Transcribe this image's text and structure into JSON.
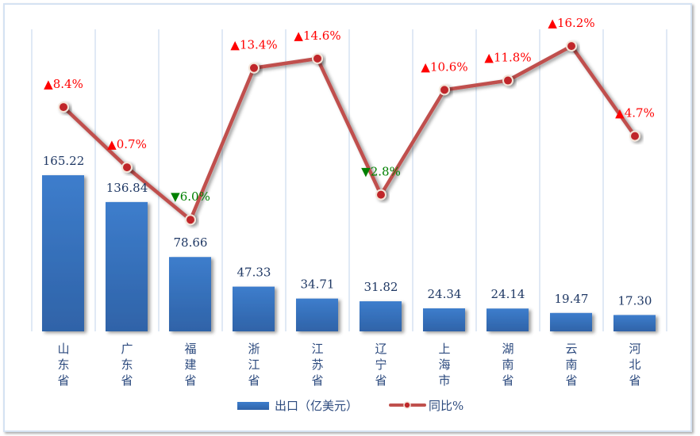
{
  "chart_data": {
    "type": "bar+line",
    "categories": [
      "山东省",
      "广东省",
      "福建省",
      "浙江省",
      "江苏省",
      "辽宁省",
      "上海市",
      "湖南省",
      "云南省",
      "河北省"
    ],
    "series": [
      {
        "name": "出口（亿美元）",
        "type": "bar",
        "values": [
          165.22,
          136.84,
          78.66,
          47.33,
          34.71,
          31.82,
          24.34,
          24.14,
          19.47,
          17.3
        ],
        "labels": [
          "165.22",
          "136.84",
          "78.66",
          "47.33",
          "34.71",
          "31.82",
          "24.34",
          "24.14",
          "19.47",
          "17.30"
        ]
      },
      {
        "name": "同比%",
        "type": "line",
        "values": [
          8.4,
          0.7,
          -6.0,
          13.4,
          14.6,
          -2.8,
          10.6,
          11.8,
          16.2,
          4.7
        ],
        "labels": [
          "▲8.4%",
          "▲0.7%",
          "▼6.0%",
          "▲13.4%",
          "▲14.6%",
          "▼2.8%",
          "▲10.6%",
          "▲11.8%",
          "▲16.2%",
          "▲4.7%"
        ]
      }
    ],
    "legend": {
      "position": "bottom",
      "items": [
        "出口（亿美元）",
        "同比%"
      ]
    },
    "colors": {
      "bar": "#3a78c6",
      "line": "#c0504d",
      "up": "#ff0000",
      "down": "#008000",
      "text": "#1f3864"
    },
    "grid": "vertical"
  }
}
